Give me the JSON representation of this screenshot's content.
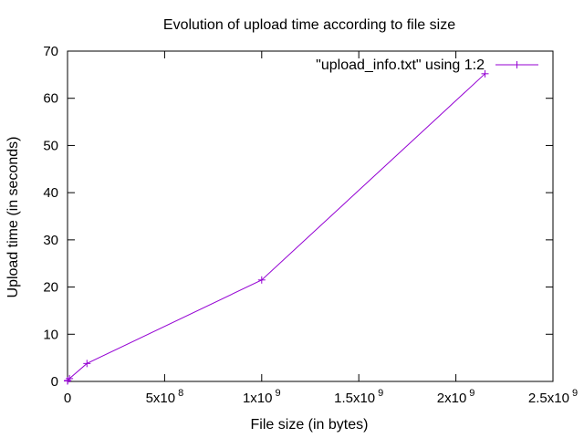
{
  "chart_data": {
    "type": "line",
    "title": "Evolution of upload time according to file size",
    "xlabel": "File size (in bytes)",
    "ylabel": "Upload time (in seconds)",
    "xlim": [
      0,
      2500000000
    ],
    "ylim": [
      0,
      70
    ],
    "x_ticks": [
      {
        "value": 0,
        "label": "0",
        "exp": ""
      },
      {
        "value": 500000000,
        "label": "5x10",
        "exp": "8"
      },
      {
        "value": 1000000000,
        "label": "1x10",
        "exp": "9"
      },
      {
        "value": 1500000000,
        "label": "1.5x10",
        "exp": "9"
      },
      {
        "value": 2000000000,
        "label": "2x10",
        "exp": "9"
      },
      {
        "value": 2500000000,
        "label": "2.5x10",
        "exp": "9"
      }
    ],
    "y_ticks": [
      0,
      10,
      20,
      30,
      40,
      50,
      60,
      70
    ],
    "grid": false,
    "legend_position": "top-right",
    "series": [
      {
        "name": "\"upload_info.txt\" using 1:2",
        "color": "#9400d3",
        "marker": "plus",
        "x": [
          0,
          1000000,
          10000000,
          100000000,
          1000000000,
          2150000000
        ],
        "y": [
          0.1,
          0.2,
          0.6,
          3.8,
          21.5,
          65.2
        ]
      }
    ]
  }
}
